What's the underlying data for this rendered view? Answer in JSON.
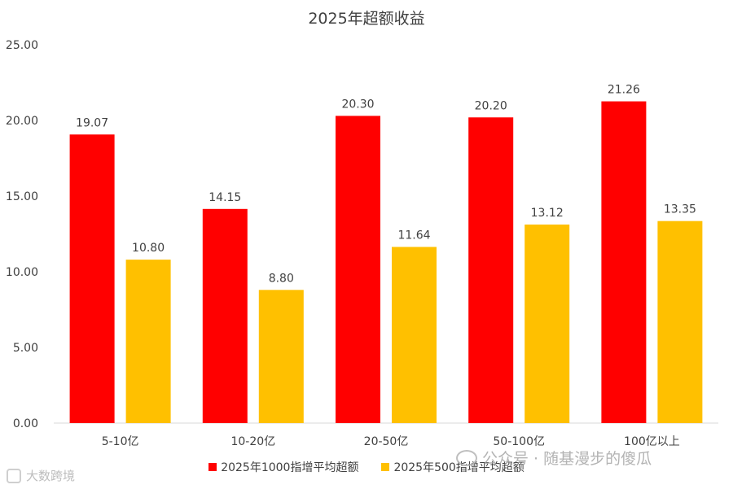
{
  "chart_data": {
    "type": "bar",
    "title": "2025年超额收益",
    "xlabel": "",
    "ylabel": "",
    "categories": [
      "5-10亿",
      "10-20亿",
      "20-50亿",
      "50-100亿",
      "100亿以上"
    ],
    "series": [
      {
        "name": "2025年1000指增平均超额",
        "color": "#ff0000",
        "values": [
          19.07,
          14.15,
          20.3,
          20.2,
          21.26
        ],
        "labels": [
          "19.07",
          "14.15",
          "20.30",
          "20.20",
          "21.26"
        ]
      },
      {
        "name": "2025年500指增平均超额",
        "color": "#ffc000",
        "values": [
          10.8,
          8.8,
          11.64,
          13.12,
          13.35
        ],
        "labels": [
          "10.80",
          "8.80",
          "11.64",
          "13.12",
          "13.35"
        ]
      }
    ],
    "ylim": [
      0,
      25
    ],
    "yticks": [
      "0.00",
      "5.00",
      "10.00",
      "15.00",
      "20.00",
      "25.00"
    ],
    "grid": false,
    "legend": "bottom"
  },
  "watermark": {
    "text": "公众号 · 随基漫步的傻瓜"
  },
  "logo": {
    "text": "大数跨境"
  }
}
